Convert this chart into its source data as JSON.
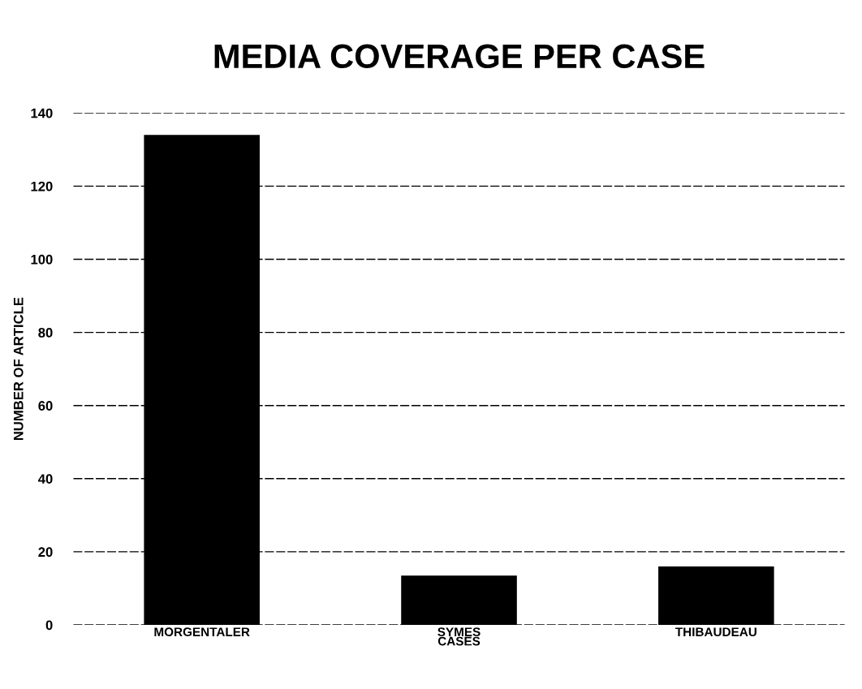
{
  "chart_data": {
    "type": "bar",
    "title": "MEDIA COVERAGE PER CASE",
    "xlabel": "CASES",
    "ylabel": "NUMBER OF ARTICLE",
    "categories": [
      "MORGENTALER",
      "SYMES",
      "THIBAUDEAU"
    ],
    "values": [
      134,
      13.5,
      16
    ],
    "color": "#000000",
    "ylim": [
      0,
      140
    ],
    "yticks": [
      0,
      20,
      40,
      60,
      80,
      100,
      120,
      140
    ],
    "grid": "y"
  }
}
